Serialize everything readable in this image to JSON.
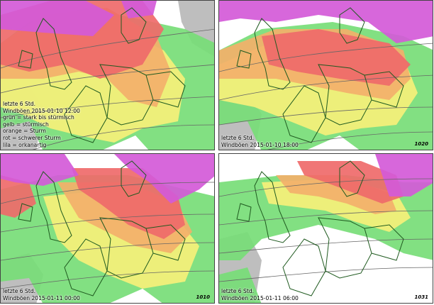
{
  "colors": {
    "sea": "#ffffff",
    "land_grey": "#b9b9b9",
    "green": "#77dd77",
    "yellow": "#f6f07a",
    "orange": "#f3b06a",
    "red": "#ef6a6a",
    "lila": "#d45ad8",
    "border": "#1f5a1f",
    "isobar": "#666666"
  },
  "panels": [
    {
      "lines": [
        "letzte 6 Std.",
        "Windböen 2015-01-10 12:00",
        "grün = stark bis stürmisch",
        "gelb = stürmisch",
        "orange = Sturm",
        "rot = schwerer Sturm",
        "lila = orkanartig"
      ],
      "pressure_label": ""
    },
    {
      "lines": [
        "letzte 6 Std.",
        "Windböen 2015-01-10 18:00"
      ],
      "pressure_label": "1020"
    },
    {
      "lines": [
        "letzte 6 Std.",
        "Windböen 2015-01-11 00:00"
      ],
      "pressure_label": "1010"
    },
    {
      "lines": [
        "letzte 6 Std.",
        "Windböen 2015-01-11 06:00"
      ],
      "pressure_label": "1031"
    }
  ]
}
